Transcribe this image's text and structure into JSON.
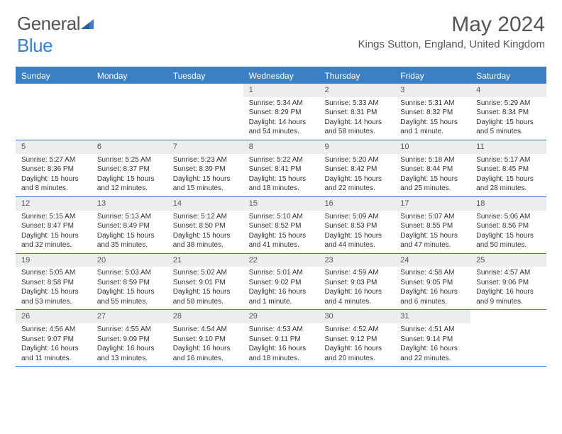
{
  "brand": {
    "part1": "General",
    "part2": "Blue"
  },
  "title": "May 2024",
  "location": "Kings Sutton, England, United Kingdom",
  "colors": {
    "accent": "#3b7fc4",
    "header_bg": "#3b7fc4",
    "header_text": "#ffffff",
    "daynum_bg": "#eceded",
    "text": "#333333",
    "title_text": "#555555"
  },
  "day_names": [
    "Sunday",
    "Monday",
    "Tuesday",
    "Wednesday",
    "Thursday",
    "Friday",
    "Saturday"
  ],
  "weeks": [
    [
      {
        "n": "",
        "sunrise": "",
        "sunset": "",
        "daylight": ""
      },
      {
        "n": "",
        "sunrise": "",
        "sunset": "",
        "daylight": ""
      },
      {
        "n": "",
        "sunrise": "",
        "sunset": "",
        "daylight": ""
      },
      {
        "n": "1",
        "sunrise": "Sunrise: 5:34 AM",
        "sunset": "Sunset: 8:29 PM",
        "daylight": "Daylight: 14 hours and 54 minutes."
      },
      {
        "n": "2",
        "sunrise": "Sunrise: 5:33 AM",
        "sunset": "Sunset: 8:31 PM",
        "daylight": "Daylight: 14 hours and 58 minutes."
      },
      {
        "n": "3",
        "sunrise": "Sunrise: 5:31 AM",
        "sunset": "Sunset: 8:32 PM",
        "daylight": "Daylight: 15 hours and 1 minute."
      },
      {
        "n": "4",
        "sunrise": "Sunrise: 5:29 AM",
        "sunset": "Sunset: 8:34 PM",
        "daylight": "Daylight: 15 hours and 5 minutes."
      }
    ],
    [
      {
        "n": "5",
        "sunrise": "Sunrise: 5:27 AM",
        "sunset": "Sunset: 8:36 PM",
        "daylight": "Daylight: 15 hours and 8 minutes."
      },
      {
        "n": "6",
        "sunrise": "Sunrise: 5:25 AM",
        "sunset": "Sunset: 8:37 PM",
        "daylight": "Daylight: 15 hours and 12 minutes."
      },
      {
        "n": "7",
        "sunrise": "Sunrise: 5:23 AM",
        "sunset": "Sunset: 8:39 PM",
        "daylight": "Daylight: 15 hours and 15 minutes."
      },
      {
        "n": "8",
        "sunrise": "Sunrise: 5:22 AM",
        "sunset": "Sunset: 8:41 PM",
        "daylight": "Daylight: 15 hours and 18 minutes."
      },
      {
        "n": "9",
        "sunrise": "Sunrise: 5:20 AM",
        "sunset": "Sunset: 8:42 PM",
        "daylight": "Daylight: 15 hours and 22 minutes."
      },
      {
        "n": "10",
        "sunrise": "Sunrise: 5:18 AM",
        "sunset": "Sunset: 8:44 PM",
        "daylight": "Daylight: 15 hours and 25 minutes."
      },
      {
        "n": "11",
        "sunrise": "Sunrise: 5:17 AM",
        "sunset": "Sunset: 8:45 PM",
        "daylight": "Daylight: 15 hours and 28 minutes."
      }
    ],
    [
      {
        "n": "12",
        "sunrise": "Sunrise: 5:15 AM",
        "sunset": "Sunset: 8:47 PM",
        "daylight": "Daylight: 15 hours and 32 minutes."
      },
      {
        "n": "13",
        "sunrise": "Sunrise: 5:13 AM",
        "sunset": "Sunset: 8:49 PM",
        "daylight": "Daylight: 15 hours and 35 minutes."
      },
      {
        "n": "14",
        "sunrise": "Sunrise: 5:12 AM",
        "sunset": "Sunset: 8:50 PM",
        "daylight": "Daylight: 15 hours and 38 minutes."
      },
      {
        "n": "15",
        "sunrise": "Sunrise: 5:10 AM",
        "sunset": "Sunset: 8:52 PM",
        "daylight": "Daylight: 15 hours and 41 minutes."
      },
      {
        "n": "16",
        "sunrise": "Sunrise: 5:09 AM",
        "sunset": "Sunset: 8:53 PM",
        "daylight": "Daylight: 15 hours and 44 minutes."
      },
      {
        "n": "17",
        "sunrise": "Sunrise: 5:07 AM",
        "sunset": "Sunset: 8:55 PM",
        "daylight": "Daylight: 15 hours and 47 minutes."
      },
      {
        "n": "18",
        "sunrise": "Sunrise: 5:06 AM",
        "sunset": "Sunset: 8:56 PM",
        "daylight": "Daylight: 15 hours and 50 minutes."
      }
    ],
    [
      {
        "n": "19",
        "sunrise": "Sunrise: 5:05 AM",
        "sunset": "Sunset: 8:58 PM",
        "daylight": "Daylight: 15 hours and 53 minutes."
      },
      {
        "n": "20",
        "sunrise": "Sunrise: 5:03 AM",
        "sunset": "Sunset: 8:59 PM",
        "daylight": "Daylight: 15 hours and 55 minutes."
      },
      {
        "n": "21",
        "sunrise": "Sunrise: 5:02 AM",
        "sunset": "Sunset: 9:01 PM",
        "daylight": "Daylight: 15 hours and 58 minutes."
      },
      {
        "n": "22",
        "sunrise": "Sunrise: 5:01 AM",
        "sunset": "Sunset: 9:02 PM",
        "daylight": "Daylight: 16 hours and 1 minute."
      },
      {
        "n": "23",
        "sunrise": "Sunrise: 4:59 AM",
        "sunset": "Sunset: 9:03 PM",
        "daylight": "Daylight: 16 hours and 4 minutes."
      },
      {
        "n": "24",
        "sunrise": "Sunrise: 4:58 AM",
        "sunset": "Sunset: 9:05 PM",
        "daylight": "Daylight: 16 hours and 6 minutes."
      },
      {
        "n": "25",
        "sunrise": "Sunrise: 4:57 AM",
        "sunset": "Sunset: 9:06 PM",
        "daylight": "Daylight: 16 hours and 9 minutes."
      }
    ],
    [
      {
        "n": "26",
        "sunrise": "Sunrise: 4:56 AM",
        "sunset": "Sunset: 9:07 PM",
        "daylight": "Daylight: 16 hours and 11 minutes."
      },
      {
        "n": "27",
        "sunrise": "Sunrise: 4:55 AM",
        "sunset": "Sunset: 9:09 PM",
        "daylight": "Daylight: 16 hours and 13 minutes."
      },
      {
        "n": "28",
        "sunrise": "Sunrise: 4:54 AM",
        "sunset": "Sunset: 9:10 PM",
        "daylight": "Daylight: 16 hours and 16 minutes."
      },
      {
        "n": "29",
        "sunrise": "Sunrise: 4:53 AM",
        "sunset": "Sunset: 9:11 PM",
        "daylight": "Daylight: 16 hours and 18 minutes."
      },
      {
        "n": "30",
        "sunrise": "Sunrise: 4:52 AM",
        "sunset": "Sunset: 9:12 PM",
        "daylight": "Daylight: 16 hours and 20 minutes."
      },
      {
        "n": "31",
        "sunrise": "Sunrise: 4:51 AM",
        "sunset": "Sunset: 9:14 PM",
        "daylight": "Daylight: 16 hours and 22 minutes."
      },
      {
        "n": "",
        "sunrise": "",
        "sunset": "",
        "daylight": ""
      }
    ]
  ]
}
